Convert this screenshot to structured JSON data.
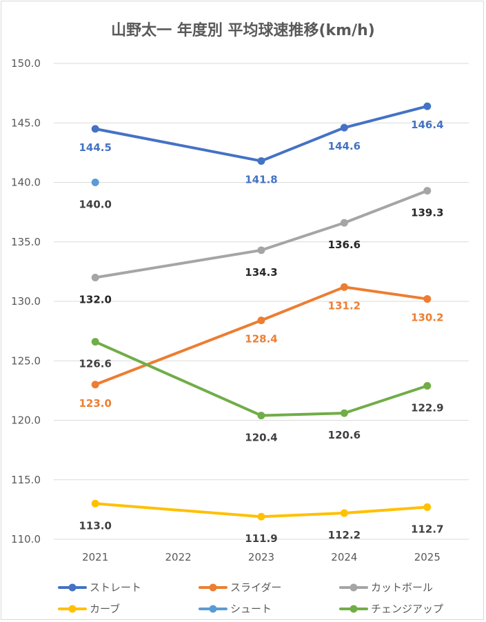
{
  "chart_data": {
    "type": "line",
    "title": "山野太一 年度別 平均球速推移(km/h)",
    "xlabel": "",
    "ylabel": "",
    "categories": [
      "2021",
      "2022",
      "2023",
      "2024",
      "2025"
    ],
    "ylim": [
      110,
      150
    ],
    "y_ticks": [
      "110.0",
      "115.0",
      "120.0",
      "125.0",
      "130.0",
      "135.0",
      "140.0",
      "145.0",
      "150.0"
    ],
    "grid": true,
    "legend_position": "bottom",
    "series": [
      {
        "name": "ストレート",
        "color": "#4472c4",
        "label_color": "#4472c4",
        "values": [
          144.5,
          null,
          141.8,
          144.6,
          146.4
        ],
        "labels": [
          "144.5",
          "",
          "141.8",
          "144.6",
          "146.4"
        ]
      },
      {
        "name": "スライダー",
        "color": "#ed7d31",
        "label_color": "#ed7d31",
        "values": [
          123.0,
          null,
          128.4,
          131.2,
          130.2
        ],
        "labels": [
          "123.0",
          "",
          "128.4",
          "131.2",
          "130.2"
        ]
      },
      {
        "name": "カットボール",
        "color": "#a5a5a5",
        "label_color": "#262626",
        "values": [
          132.0,
          null,
          134.3,
          136.6,
          139.3
        ],
        "labels": [
          "132.0",
          "",
          "134.3",
          "136.6",
          "139.3"
        ]
      },
      {
        "name": "カーブ",
        "color": "#ffc000",
        "label_color": "#404040",
        "values": [
          113.0,
          null,
          111.9,
          112.2,
          112.7
        ],
        "labels": [
          "113.0",
          "",
          "111.9",
          "112.2",
          "112.7"
        ]
      },
      {
        "name": "シュート",
        "color": "#5b9bd5",
        "label_color": "#404040",
        "values": [
          140.0,
          null,
          null,
          null,
          null
        ],
        "labels": [
          "140.0",
          "",
          "",
          "",
          ""
        ]
      },
      {
        "name": "チェンジアップ",
        "color": "#70ad47",
        "label_color": "#404040",
        "values": [
          126.6,
          null,
          120.4,
          120.6,
          122.9
        ],
        "labels": [
          "126.6",
          "",
          "120.4",
          "120.6",
          "122.9"
        ]
      }
    ]
  }
}
